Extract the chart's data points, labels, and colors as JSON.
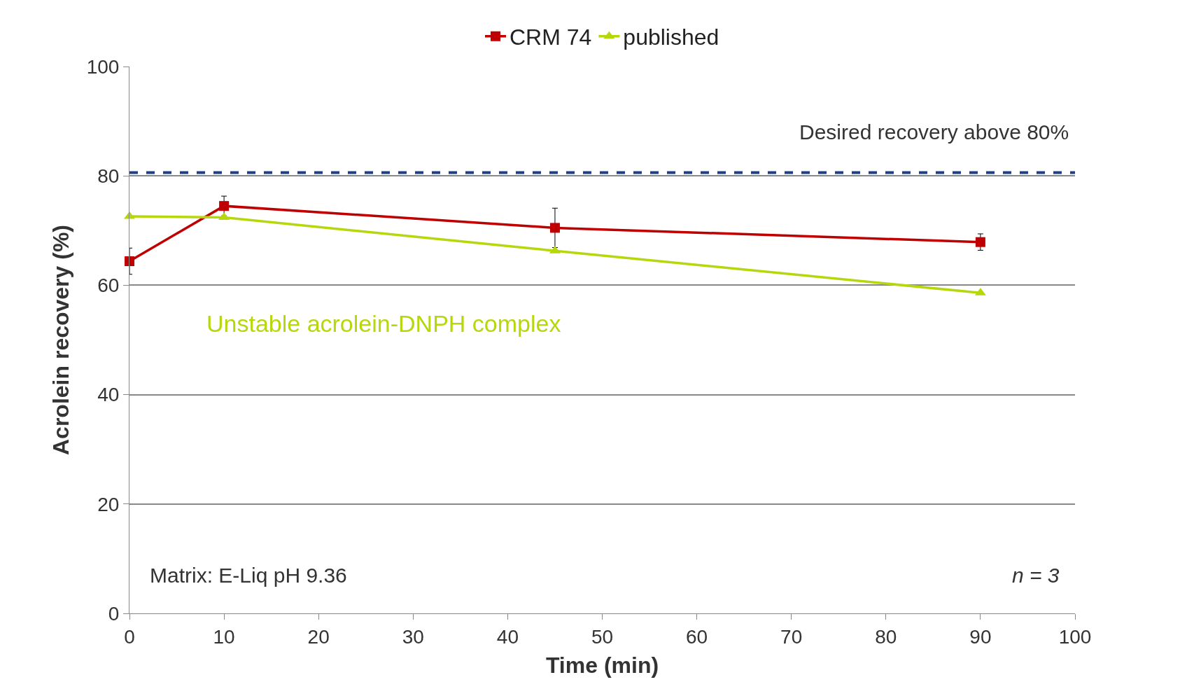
{
  "chart_data": {
    "type": "line",
    "xlabel": "Time (min)",
    "ylabel": "Acrolein recovery (%)",
    "xlim": [
      0,
      100
    ],
    "xticks": [
      0,
      10,
      20,
      30,
      40,
      50,
      60,
      70,
      80,
      90,
      100
    ],
    "ylim": [
      0,
      100
    ],
    "yticks": [
      0,
      20,
      40,
      60,
      80,
      100
    ],
    "x": [
      0,
      10,
      45,
      90
    ],
    "series": [
      {
        "name": "CRM 74",
        "color": "#c00000",
        "marker": "square",
        "values": [
          64.4,
          74.5,
          70.5,
          67.9
        ],
        "errors": [
          2.4,
          1.8,
          3.6,
          1.5
        ]
      },
      {
        "name": "published",
        "color": "#b5d80c",
        "marker": "triangle",
        "values": [
          72.6,
          72.4,
          66.3,
          58.6
        ]
      }
    ],
    "ref_lines": [
      {
        "axis": "y",
        "value": 80.6,
        "label": "Desired recovery above 80%",
        "color": "#1f3d8a",
        "line_style": "dashed"
      }
    ],
    "annotations": [
      "Unstable acrolein-DNPH complex",
      "Matrix: E-Liq pH 9.36",
      "n = 3"
    ],
    "grid": "y",
    "legend": "top",
    "line_style": "solid"
  }
}
